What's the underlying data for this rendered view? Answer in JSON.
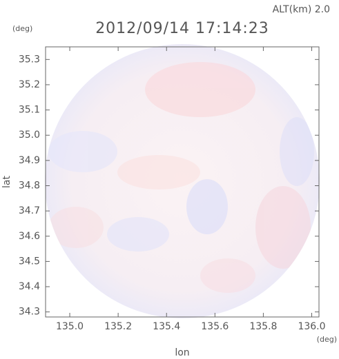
{
  "chart_data": {
    "type": "radar-field",
    "title": "2012/09/14 17:14:23",
    "altitude_label": "ALT(km) 2.0",
    "y_unit": "(deg)",
    "x_unit": "(deg)",
    "xlabel": "lon",
    "ylabel": "lat",
    "xlim": [
      134.9,
      136.03
    ],
    "ylim": [
      34.28,
      35.35
    ],
    "xticks": [
      {
        "value": 135.0,
        "label": "135.0"
      },
      135.2,
      135.4,
      135.6,
      135.8,
      {
        "value": 136.0,
        "label": "136.0"
      }
    ],
    "yticks": [
      35.3,
      35.2,
      35.1,
      {
        "value": 35.0,
        "label": "35.0"
      },
      34.9,
      34.8,
      34.7,
      34.6,
      34.5,
      34.4,
      34.3
    ]
  }
}
